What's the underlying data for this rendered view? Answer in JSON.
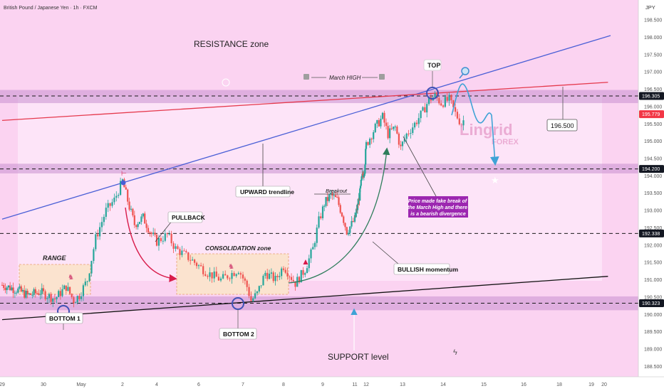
{
  "header": {
    "symbol": "British Pound / Japanese Yen · 1h · FXCM",
    "currency": "JPY"
  },
  "chart_data": {
    "type": "candlestick",
    "y_axis": {
      "ticks": [
        "198.500",
        "198.000",
        "197.500",
        "197.000",
        "196.500",
        "196.000",
        "195.500",
        "195.000",
        "194.500",
        "194.000",
        "193.500",
        "193.000",
        "192.500",
        "192.000",
        "191.500",
        "191.000",
        "190.500",
        "190.000",
        "189.500",
        "189.000",
        "188.500"
      ],
      "ylim": [
        188.3,
        198.9
      ]
    },
    "x_axis": {
      "ticks": [
        {
          "label": "29",
          "d": -0.3
        },
        {
          "label": "30",
          "d": 1
        },
        {
          "label": "May",
          "d": 2
        },
        {
          "label": "2",
          "d": 3
        },
        {
          "label": "4",
          "d": 4
        },
        {
          "label": "6",
          "d": 5
        },
        {
          "label": "7",
          "d": 6
        },
        {
          "label": "8",
          "d": 7
        },
        {
          "label": "9",
          "d": 8
        },
        {
          "label": "11",
          "d": 9
        },
        {
          "label": "12",
          "d": 10
        },
        {
          "label": "13",
          "d": 11
        },
        {
          "label": "14",
          "d": 12
        },
        {
          "label": "15",
          "d": 13
        },
        {
          "label": "16",
          "d": 14
        },
        {
          "label": "18",
          "d": 15
        },
        {
          "label": "19",
          "d": 16
        },
        {
          "label": "20",
          "d": 17
        }
      ]
    },
    "price_tags": [
      {
        "value": 196.305,
        "label": "196.305",
        "bg": "#131722"
      },
      {
        "value": 195.779,
        "label": "195.779",
        "bg": "#f23645"
      },
      {
        "value": 194.2,
        "label": "194.200",
        "bg": "#131722"
      },
      {
        "value": 192.338,
        "label": "192.338",
        "bg": "#131722"
      },
      {
        "value": 190.323,
        "label": "190.323",
        "bg": "#131722"
      }
    ],
    "zones": [
      {
        "name": "resistance",
        "top": 196.48,
        "bottom": 196.1
      },
      {
        "name": "middle",
        "top": 194.35,
        "bottom": 194.07
      },
      {
        "name": "support",
        "top": 190.52,
        "bottom": 190.12
      }
    ],
    "close_path": [
      [
        -0.3,
        190.85
      ],
      [
        0.2,
        190.7
      ],
      [
        0.5,
        190.55
      ],
      [
        0.9,
        190.65
      ],
      [
        1.3,
        190.45
      ],
      [
        1.6,
        190.8
      ],
      [
        1.8,
        190.4
      ],
      [
        1.95,
        190.55
      ],
      [
        2.15,
        191.0
      ],
      [
        2.35,
        192.2
      ],
      [
        2.6,
        193.0
      ],
      [
        2.8,
        193.3
      ],
      [
        3.0,
        193.85
      ],
      [
        3.2,
        193.1
      ],
      [
        3.35,
        192.6
      ],
      [
        3.6,
        192.8
      ],
      [
        3.8,
        192.4
      ],
      [
        4.0,
        192.1
      ],
      [
        4.25,
        192.3
      ],
      [
        4.45,
        191.9
      ],
      [
        4.8,
        191.6
      ],
      [
        5.2,
        191.2
      ],
      [
        5.5,
        191.0
      ],
      [
        5.9,
        191.3
      ],
      [
        6.1,
        190.8
      ],
      [
        6.2,
        190.4
      ],
      [
        6.35,
        190.6
      ],
      [
        6.55,
        191.2
      ],
      [
        6.8,
        191.0
      ],
      [
        7.0,
        191.4
      ],
      [
        7.3,
        190.9
      ],
      [
        7.55,
        191.3
      ],
      [
        7.75,
        191.9
      ],
      [
        7.9,
        192.7
      ],
      [
        8.05,
        193.2
      ],
      [
        8.25,
        193.45
      ],
      [
        8.45,
        193.3
      ],
      [
        8.6,
        192.9
      ],
      [
        8.75,
        192.4
      ],
      [
        8.9,
        192.6
      ],
      [
        9.1,
        192.9
      ],
      [
        9.3,
        193.2
      ],
      [
        9.45,
        193.5
      ],
      [
        9.6,
        193.9
      ],
      [
        9.85,
        194.2
      ],
      [
        10.0,
        194.9
      ],
      [
        10.25,
        195.4
      ],
      [
        10.45,
        195.7
      ],
      [
        10.6,
        195.2
      ],
      [
        10.8,
        195.4
      ],
      [
        10.95,
        194.8
      ],
      [
        11.1,
        195.2
      ],
      [
        11.3,
        195.5
      ],
      [
        11.5,
        195.85
      ],
      [
        11.65,
        196.2
      ],
      [
        11.8,
        196.3
      ],
      [
        11.95,
        196.1
      ],
      [
        12.15,
        196.2
      ],
      [
        12.3,
        195.8
      ],
      [
        12.45,
        195.5
      ],
      [
        12.55,
        195.7
      ]
    ],
    "trendlines": [
      {
        "name": "upward-trendline",
        "color": "#4a5fd6",
        "from": [
          -0.3,
          192.75
        ],
        "to": [
          17.5,
          198.05
        ]
      },
      {
        "name": "red-line",
        "color": "#e5394d",
        "from": [
          -0.3,
          195.6
        ],
        "to": [
          17.3,
          196.7
        ]
      },
      {
        "name": "support-line",
        "color": "#111111",
        "from": [
          -0.3,
          189.85
        ],
        "to": [
          17.3,
          191.1
        ]
      }
    ],
    "annotations": {
      "resistance_label": "RESISTANCE zone",
      "support_label": "SUPPORT level",
      "march_high": "March HIGH",
      "top": "TOP",
      "range": "RANGE",
      "consolidation": "CONSOLIDATION zone",
      "pullback": "PULLBACK",
      "upward_trendline": "UPWARD trendline",
      "breakout": "Breakout",
      "bullish_momentum": "BULLISH momentum",
      "bottom1": "BOTTOM 1",
      "bottom2": "BOTTOM 2",
      "target": "196.500",
      "note_lines": [
        "Price made fake break of",
        "the March High and  there",
        "is a bearish divergence"
      ]
    },
    "watermark": {
      "line1": "Lingrid",
      "line2": "FOREX"
    }
  },
  "colors": {
    "up": "#26a69a",
    "down": "#ef5350",
    "pink_bg": "#f8c6ec",
    "zone": "#c98fcf",
    "note_bg": "#9c27b0",
    "arrow_red": "#d81b4a",
    "arrow_green": "#2e7d5b",
    "projection": "#3fa3d6"
  }
}
